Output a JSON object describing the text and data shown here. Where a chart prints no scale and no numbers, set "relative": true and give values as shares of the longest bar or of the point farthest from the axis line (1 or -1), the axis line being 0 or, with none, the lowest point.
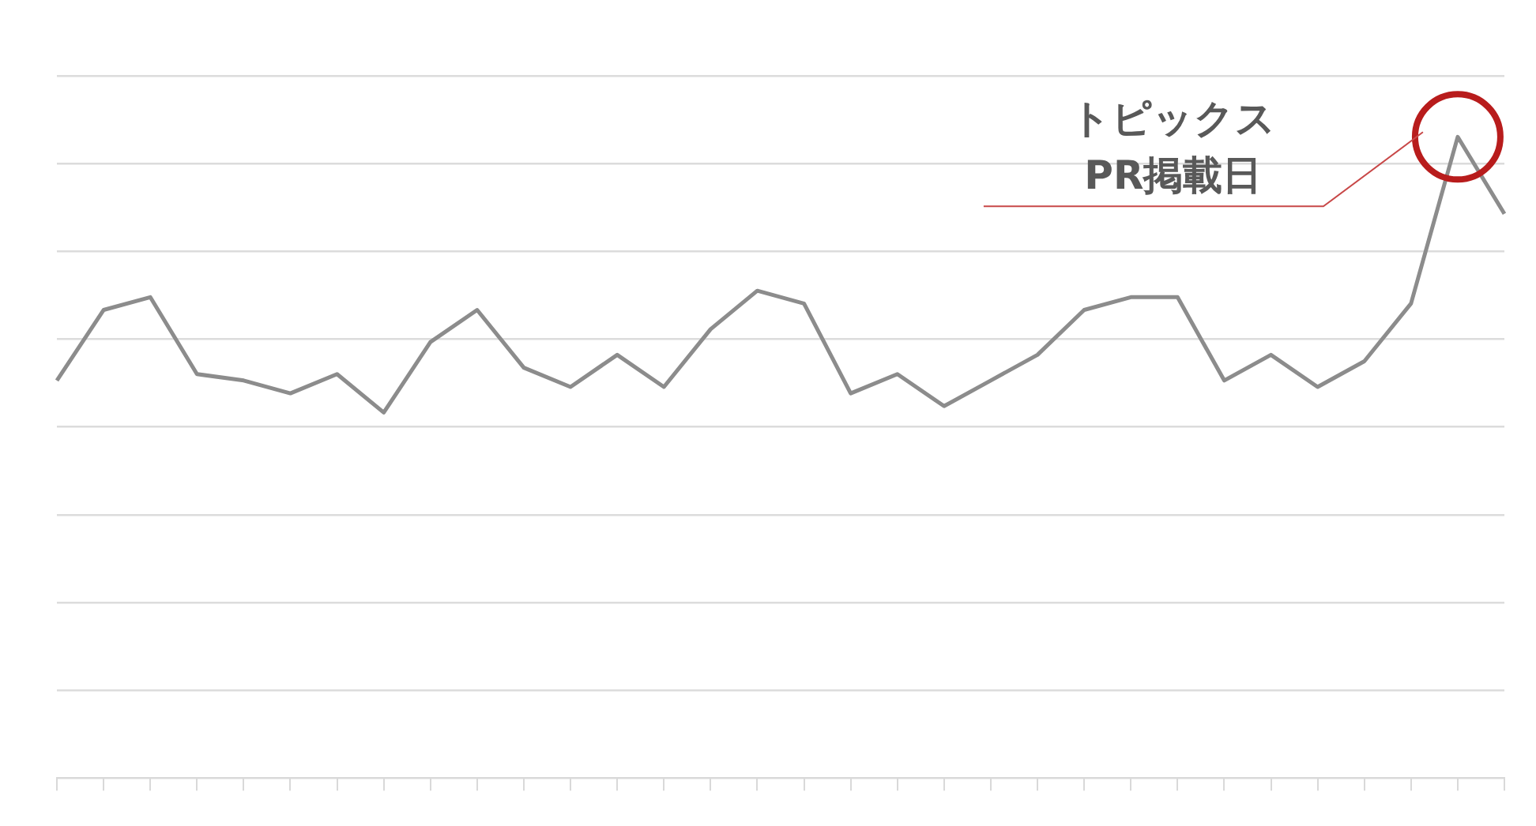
{
  "chart_data": {
    "type": "line",
    "relative": true,
    "grid": "y",
    "legend": false,
    "marker": "none",
    "line_style": "solid",
    "categories": [
      null,
      null,
      null,
      null,
      null,
      null,
      null,
      null,
      null,
      null,
      null,
      null,
      null,
      null,
      null,
      null,
      null,
      null,
      null,
      null,
      null,
      null,
      null,
      null,
      null,
      null,
      null,
      null,
      null,
      null,
      null,
      null
    ],
    "series": [
      {
        "color": "#8c8c8c",
        "values": [
          0.62,
          0.73,
          0.75,
          0.63,
          0.62,
          0.6,
          0.63,
          0.57,
          0.68,
          0.73,
          0.64,
          0.61,
          0.66,
          0.61,
          0.7,
          0.76,
          0.74,
          0.6,
          0.63,
          0.58,
          0.62,
          0.66,
          0.73,
          0.75,
          0.75,
          0.62,
          0.66,
          0.61,
          0.65,
          0.74,
          1,
          0.88
        ]
      }
    ],
    "annotations": [
      "トピックス\nPR掲載日"
    ]
  }
}
